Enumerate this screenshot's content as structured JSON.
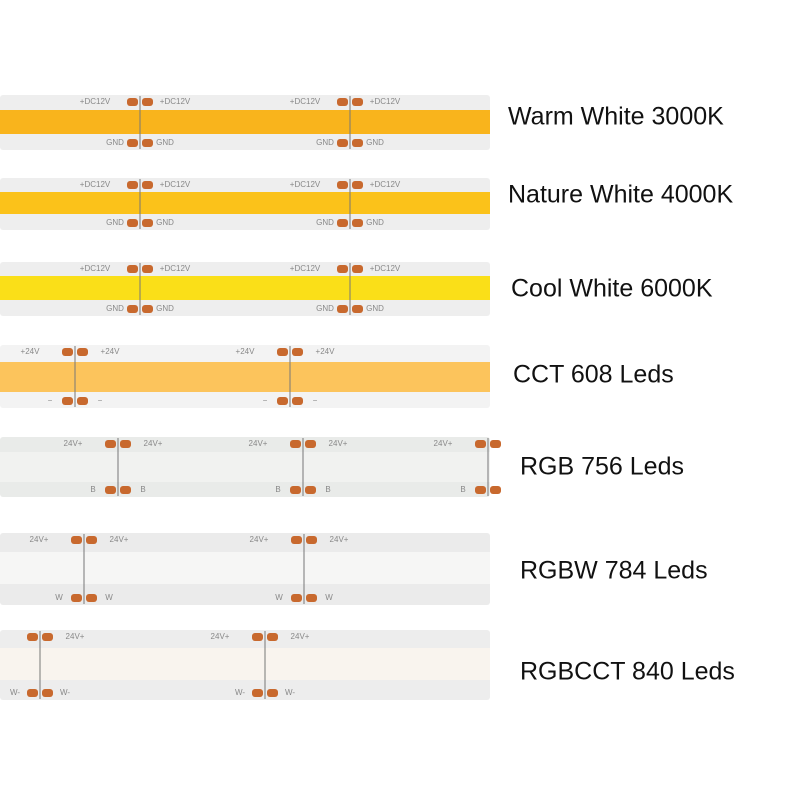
{
  "products": [
    {
      "label": "Warm White 3000K",
      "pad_top": "+DC12V",
      "pad_bottom": "GND"
    },
    {
      "label": "Nature White 4000K",
      "pad_top": "+DC12V",
      "pad_bottom": "GND"
    },
    {
      "label": "Cool White 6000K",
      "pad_top": "+DC12V",
      "pad_bottom": "GND"
    },
    {
      "label": "CCT 608 Leds",
      "pad_top": "+24V",
      "pad_bottom": "−"
    },
    {
      "label": "RGB 756 Leds",
      "pad_top": "24V+",
      "pad_bottom": "B"
    },
    {
      "label": "RGBW 784 Leds",
      "pad_top": "24V+",
      "pad_bottom": "W"
    },
    {
      "label": "RGBCCT 840 Leds",
      "pad_top": "24V+",
      "pad_bottom": "W-"
    }
  ]
}
